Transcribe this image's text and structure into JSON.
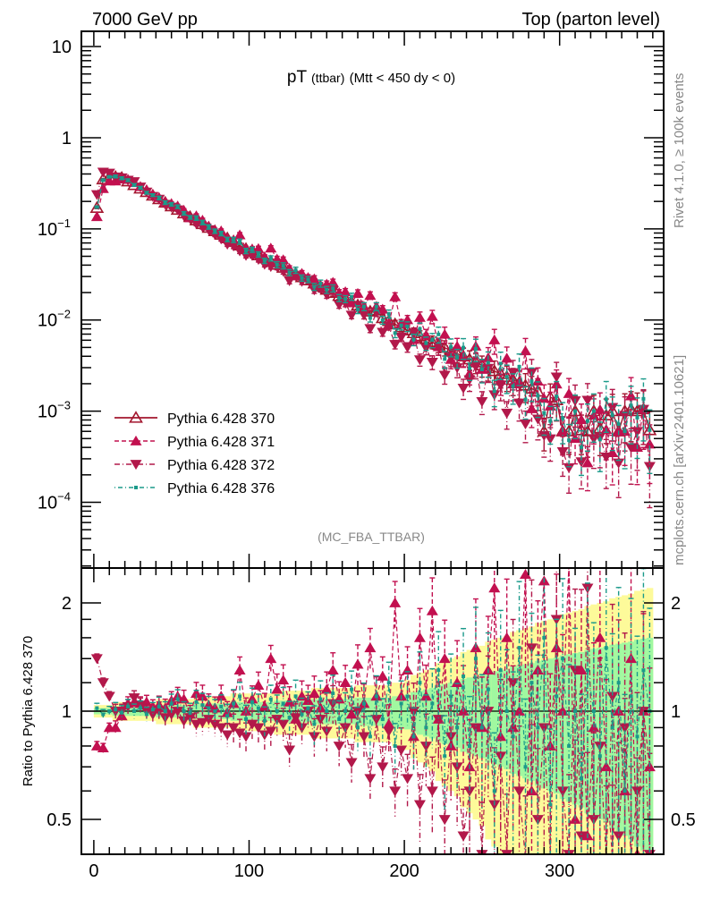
{
  "header": {
    "left": "7000 GeV pp",
    "right": "Top (parton level)"
  },
  "side_labels": {
    "rivet": "Rivet 4.1.0, ≥ 100k events",
    "mcplots": "mcplots.cern.ch [arXiv:2401.10621]"
  },
  "chart_data": {
    "type": "scatter",
    "title_main": "pT",
    "title_small": "(ttbar)",
    "title_rest": "(Mtt < 450 dy < 0)",
    "analysis": "(MC_FBA_TTBAR)",
    "xlabel": "",
    "ylabel": "",
    "ratio_ylabel": "Ratio to Pythia 6.428 370",
    "xlim": [
      -8,
      367
    ],
    "ylim": [
      1.9e-05,
      14.7
    ],
    "yscale": "log",
    "ratio_ylim": [
      0.4,
      2.5
    ],
    "ratio_yscale": "log",
    "x_ticks": [
      0,
      100,
      200,
      300
    ],
    "x_tick_labels": [
      "0",
      "100",
      "200",
      "300"
    ],
    "y_ticks": [
      10,
      1,
      0.1,
      0.01,
      0.001,
      0.0001
    ],
    "y_tick_labels": [
      {
        "base": "10",
        "exp": ""
      },
      {
        "base": "1",
        "exp": ""
      },
      {
        "base": "10",
        "exp": "−1"
      },
      {
        "base": "10",
        "exp": "−2"
      },
      {
        "base": "10",
        "exp": "−3"
      },
      {
        "base": "10",
        "exp": "−4"
      }
    ],
    "ratio_y_ticks": [
      2,
      1,
      0.5
    ],
    "ratio_y_tick_labels": [
      "2",
      "1",
      "0.5"
    ],
    "legend_position": "bottom-left",
    "bin_width": 4,
    "x": [
      2,
      6,
      10,
      14,
      18,
      22,
      26,
      30,
      34,
      38,
      42,
      46,
      50,
      54,
      58,
      62,
      66,
      70,
      74,
      78,
      82,
      86,
      90,
      94,
      98,
      102,
      106,
      110,
      114,
      118,
      122,
      126,
      130,
      134,
      138,
      142,
      146,
      150,
      154,
      158,
      162,
      166,
      170,
      174,
      178,
      182,
      186,
      190,
      194,
      198,
      202,
      206,
      210,
      214,
      218,
      222,
      226,
      230,
      234,
      238,
      242,
      246,
      250,
      254,
      258,
      262,
      266,
      270,
      274,
      278,
      282,
      286,
      290,
      294,
      298,
      302,
      306,
      310,
      314,
      318,
      322,
      326,
      330,
      334,
      338,
      342,
      346,
      350,
      354,
      358
    ],
    "reference": {
      "name": "Pythia 6.428 370",
      "color": "#a3162e",
      "values": [
        0.17,
        0.35,
        0.372,
        0.372,
        0.363,
        0.332,
        0.303,
        0.277,
        0.254,
        0.232,
        0.212,
        0.194,
        0.177,
        0.162,
        0.148,
        0.135,
        0.124,
        0.113,
        0.103,
        0.0944,
        0.0863,
        0.0789,
        0.0721,
        0.0659,
        0.0603,
        0.0557,
        0.0514,
        0.0475,
        0.0439,
        0.0405,
        0.0375,
        0.0346,
        0.032,
        0.0295,
        0.0273,
        0.0252,
        0.0233,
        0.0215,
        0.0199,
        0.0184,
        0.017,
        0.0157,
        0.0145,
        0.0134,
        0.0124,
        0.0128,
        0.0105,
        0.00975,
        0.009,
        0.00832,
        0.00773,
        0.00718,
        0.00667,
        0.00619,
        0.00575,
        0.00535,
        0.00497,
        0.00461,
        0.00429,
        0.00398,
        0.0037,
        0.00344,
        0.00319,
        0.00296,
        0.00275,
        0.00256,
        0.00238,
        0.00221,
        0.00205,
        0.00191,
        0.00177,
        0.00164,
        0.0006,
        0.00142,
        0.00132,
        0.0006,
        0.0006,
        0.001,
        0.00062,
        0.0006,
        0.001,
        0.00065,
        0.0009,
        0.001,
        0.0006,
        0.001,
        0.00105,
        0.001,
        0.00105,
        0.00062
      ],
      "stat_rel_err": [
        0.02,
        0.02,
        0.02,
        0.03,
        0.03,
        0.03,
        0.03,
        0.03,
        0.03,
        0.03,
        0.04,
        0.04,
        0.04,
        0.04,
        0.04,
        0.04,
        0.05,
        0.05,
        0.05,
        0.05,
        0.05,
        0.05,
        0.06,
        0.06,
        0.06,
        0.06,
        0.06,
        0.06,
        0.06,
        0.07,
        0.07,
        0.07,
        0.07,
        0.07,
        0.07,
        0.08,
        0.08,
        0.08,
        0.08,
        0.08,
        0.08,
        0.08,
        0.09,
        0.09,
        0.09,
        0.09,
        0.09,
        0.09,
        0.1,
        0.1,
        0.11,
        0.13,
        0.14,
        0.15,
        0.16,
        0.18,
        0.19,
        0.2,
        0.21,
        0.23,
        0.24,
        0.25,
        0.26,
        0.28,
        0.29,
        0.3,
        0.31,
        0.33,
        0.34,
        0.35,
        0.36,
        0.38,
        0.39,
        0.4,
        0.41,
        0.43,
        0.44,
        0.45,
        0.46,
        0.48,
        0.49,
        0.5,
        0.51,
        0.53,
        0.54,
        0.55,
        0.56,
        0.58,
        0.59,
        0.6
      ],
      "total_err_scale": 2.0
    },
    "series": [
      {
        "name": "Pythia 6.428 371",
        "color": "#c2104f",
        "ratio": [
          0.8,
          0.79,
          0.9,
          0.9,
          0.97,
          1.05,
          1.06,
          1.05,
          1.06,
          1.03,
          1.04,
          1.02,
          1.07,
          1.1,
          1.08,
          0.98,
          1.12,
          1.1,
          1.04,
          1.02,
          1.1,
          0.99,
          1.05,
          1.3,
          1.0,
          1.08,
          1.18,
          1.03,
          1.4,
          1.15,
          1.22,
          1.06,
          0.95,
          1.1,
          1.07,
          1.12,
          1.02,
          1.15,
          1.3,
          1.08,
          1.2,
          0.98,
          1.35,
          1.05,
          1.5,
          1.1,
          1.25,
          0.92,
          2.0,
          1.1,
          1.3,
          0.85,
          1.6,
          1.1,
          1.9,
          0.95,
          1.4,
          0.8,
          1.2,
          1.0,
          0.7,
          1.5,
          0.9,
          1.3,
          2.2,
          0.85,
          1.6,
          0.9,
          1.0,
          2.4,
          0.6,
          1.3,
          2.3,
          0.8,
          1.5,
          1.0,
          2.6,
          0.5,
          1.3,
          0.45,
          0.9,
          1.6,
          0.7,
          0.35,
          1.0,
          0.6,
          1.4,
          0.4,
          1.0,
          0.7
        ]
      },
      {
        "name": "Pythia 6.428 372",
        "color": "#b2184a",
        "ratio": [
          1.4,
          1.2,
          1.1,
          1.0,
          1.0,
          1.03,
          1.09,
          1.04,
          1.0,
          0.98,
          1.0,
          0.96,
          0.98,
          1.0,
          0.94,
          0.96,
          0.92,
          0.93,
          0.95,
          0.92,
          0.9,
          0.86,
          0.9,
          0.87,
          0.85,
          0.92,
          0.9,
          0.86,
          0.88,
          0.95,
          0.92,
          0.78,
          0.96,
          0.9,
          1.0,
          0.85,
          0.95,
          0.88,
          1.05,
          0.8,
          0.9,
          0.72,
          1.0,
          0.85,
          0.65,
          0.95,
          0.7,
          0.88,
          0.6,
          0.78,
          0.65,
          1.0,
          0.55,
          0.8,
          0.6,
          0.95,
          0.5,
          0.85,
          0.7,
          0.45,
          0.6,
          0.9,
          0.4,
          1.0,
          0.55,
          0.75,
          0.4,
          1.2,
          0.6,
          0.38,
          1.5,
          0.5,
          0.9,
          0.35,
          1.8,
          0.6,
          0.4,
          1.3,
          0.45,
          2.2,
          0.5,
          0.8,
          0.35,
          1.1,
          0.45,
          0.9,
          0.38,
          0.6,
          1.0,
          0.4
        ]
      },
      {
        "name": "Pythia 6.428 376",
        "color": "#1b9a8a",
        "ratio": [
          1.02,
          0.98,
          1.0,
          1.01,
          0.99,
          1.03,
          1.0,
          1.02,
          0.98,
          1.01,
          1.03,
          1.0,
          1.05,
          1.08,
          1.0,
          0.99,
          1.06,
          1.04,
          1.02,
          1.0,
          1.03,
          0.97,
          1.05,
          1.1,
          0.95,
          1.06,
          1.02,
          0.94,
          1.08,
          1.0,
          1.05,
          0.96,
          1.1,
          0.98,
          1.02,
          0.92,
          1.08,
          1.0,
          1.12,
          0.95,
          1.0,
          1.15,
          0.9,
          1.05,
          0.85,
          1.1,
          0.95,
          1.2,
          0.8,
          1.05,
          1.1,
          0.85,
          1.2,
          0.9,
          1.05,
          1.3,
          0.75,
          1.1,
          0.9,
          1.25,
          0.8,
          1.4,
          0.9,
          1.15,
          0.6,
          1.3,
          1.0,
          0.85,
          1.5,
          0.7,
          1.2,
          0.9,
          1.6,
          0.55,
          1.1,
          1.4,
          0.8,
          1.0,
          0.65,
          1.3,
          1.0,
          0.75,
          1.5,
          0.9,
          1.2,
          0.6,
          1.1,
          0.85,
          1.3,
          1.0
        ]
      }
    ],
    "band_colors": {
      "inner": "#a0f8a0",
      "outer": "#fdfa9a"
    }
  }
}
